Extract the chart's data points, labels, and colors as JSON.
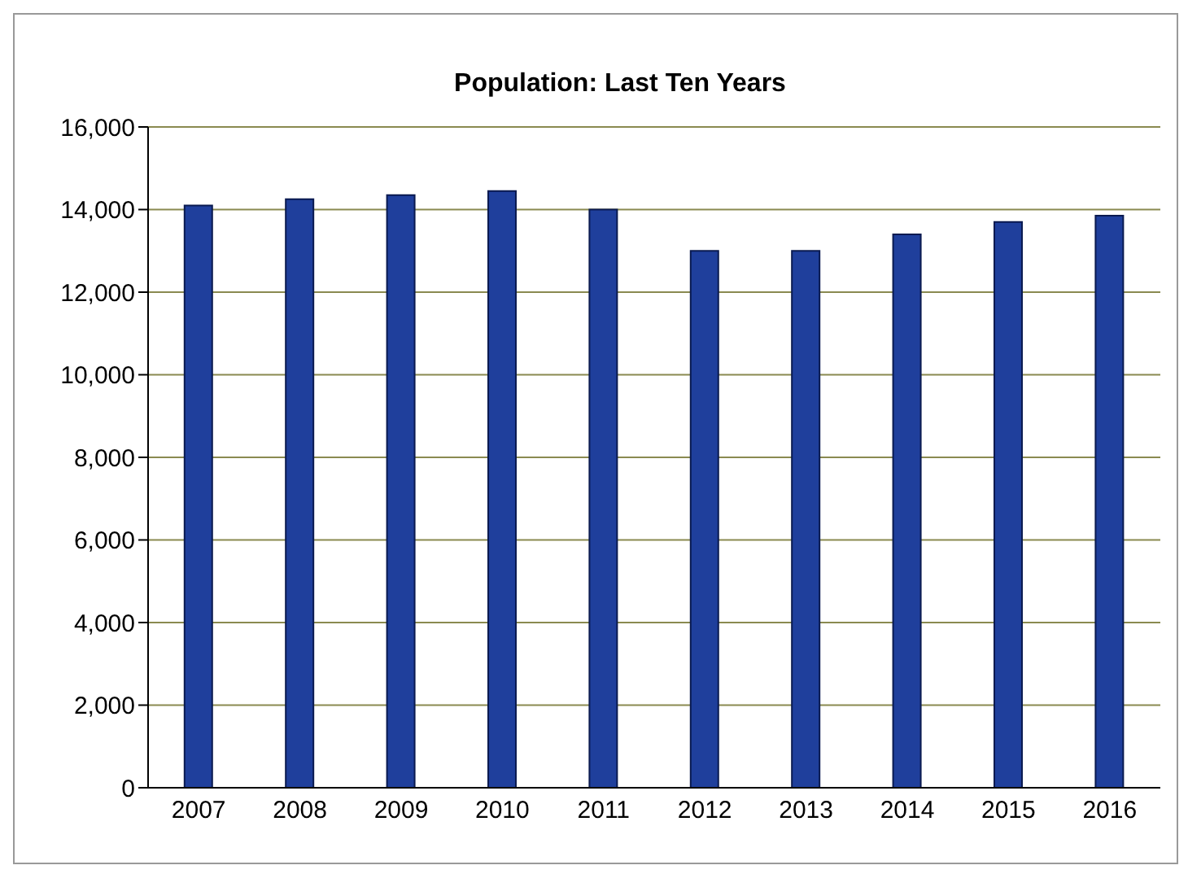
{
  "chart_data": {
    "type": "bar",
    "title": "Population: Last Ten Years",
    "categories": [
      "2007",
      "2008",
      "2009",
      "2010",
      "2011",
      "2012",
      "2013",
      "2014",
      "2015",
      "2016"
    ],
    "values": [
      14100,
      14250,
      14350,
      14450,
      14000,
      13000,
      13000,
      13400,
      13700,
      13850
    ],
    "color": "#1f3f9c",
    "ylim": [
      0,
      16000
    ],
    "yticks": [
      {
        "value": 0,
        "label": "0"
      },
      {
        "value": 2000,
        "label": "2,000"
      },
      {
        "value": 4000,
        "label": "4,000"
      },
      {
        "value": 6000,
        "label": "6,000"
      },
      {
        "value": 8000,
        "label": "8,000"
      },
      {
        "value": 10000,
        "label": "10,000"
      },
      {
        "value": 12000,
        "label": "12,000"
      },
      {
        "value": 14000,
        "label": "14,000"
      },
      {
        "value": 16000,
        "label": "16,000"
      }
    ],
    "grid": "y",
    "legend": false
  }
}
